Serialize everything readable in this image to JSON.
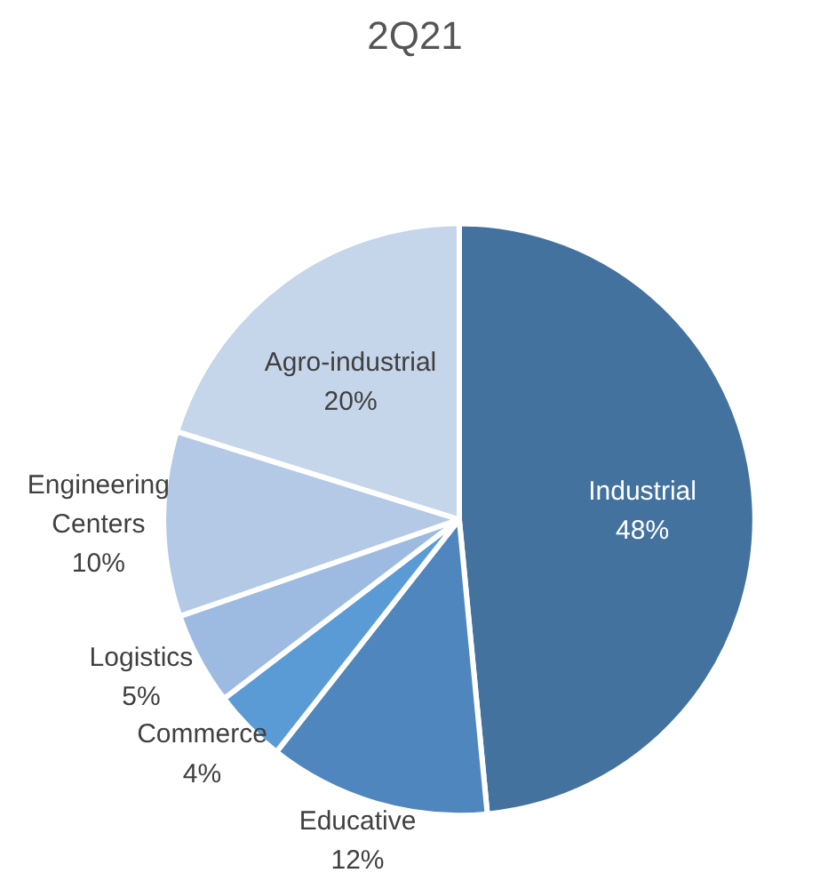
{
  "chart_data": {
    "type": "pie",
    "title": "2Q21",
    "categories": [
      "Industrial",
      "Educative",
      "Commerce",
      "Logistics",
      "Engineering\nCenters",
      "Agro-industrial"
    ],
    "values": [
      48,
      12,
      4,
      5,
      10,
      20
    ],
    "value_labels": [
      "48%",
      "12%",
      "4%",
      "5%",
      "10%",
      "20%"
    ],
    "colors": [
      "#44729f",
      "#4f86bd",
      "#5b9bd5",
      "#9dbbe0",
      "#b4c9e6",
      "#c5d5ea"
    ],
    "legend": false
  }
}
